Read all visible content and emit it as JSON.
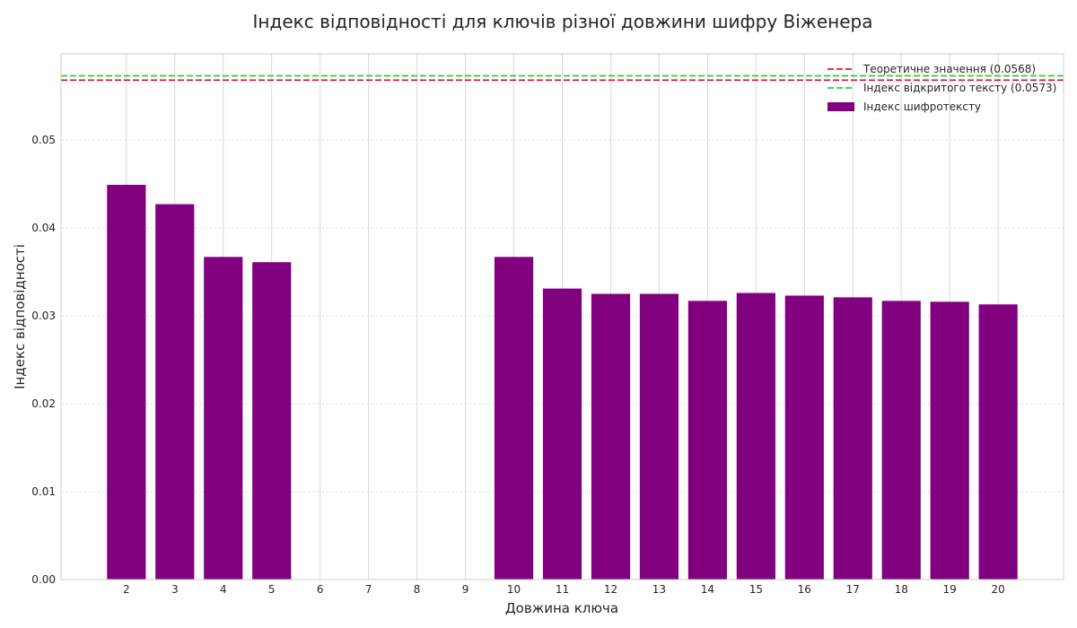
{
  "chart_data": {
    "type": "bar",
    "title": "Індекс відповідності для ключів різної довжини шифру Віженера",
    "xlabel": "Довжина ключа",
    "ylabel": "Індекс відповідності",
    "categories": [
      "2",
      "3",
      "4",
      "5",
      "6",
      "7",
      "8",
      "9",
      "10",
      "11",
      "12",
      "13",
      "14",
      "15",
      "16",
      "17",
      "18",
      "19",
      "20"
    ],
    "x": [
      2,
      3,
      4,
      5,
      6,
      7,
      8,
      9,
      10,
      11,
      12,
      13,
      14,
      15,
      16,
      17,
      18,
      19,
      20
    ],
    "values": [
      0.0449,
      0.0427,
      0.0367,
      0.0361,
      0,
      0,
      0,
      0,
      0.0367,
      0.0331,
      0.0325,
      0.0325,
      0.0317,
      0.0326,
      0.0323,
      0.0321,
      0.0317,
      0.0316,
      0.0313
    ],
    "ylim": [
      0,
      0.0598
    ],
    "xlim": [
      0.65,
      21.35
    ],
    "yticks": [
      0.0,
      0.01,
      0.02,
      0.03,
      0.04,
      0.05
    ],
    "ytick_labels": [
      "0.00",
      "0.01",
      "0.02",
      "0.03",
      "0.04",
      "0.05"
    ],
    "grid": true,
    "legend_position": "top-right",
    "bar_color": "#800080",
    "reference_lines": [
      {
        "label": "Теоретичне значення (0.0568)",
        "value": 0.0568,
        "color": "#dc143c",
        "style": "dashed"
      },
      {
        "label": "Індекс відкритого тексту (0.0573)",
        "value": 0.0573,
        "color": "#32cd32",
        "style": "dashed"
      }
    ],
    "legend": [
      {
        "label": "Теоретичне значення (0.0568)",
        "kind": "line",
        "color": "#dc143c"
      },
      {
        "label": "Індекс відкритого тексту (0.0573)",
        "kind": "line",
        "color": "#32cd32"
      },
      {
        "label": "Індекс шифротексту",
        "kind": "patch",
        "color": "#800080"
      }
    ]
  }
}
